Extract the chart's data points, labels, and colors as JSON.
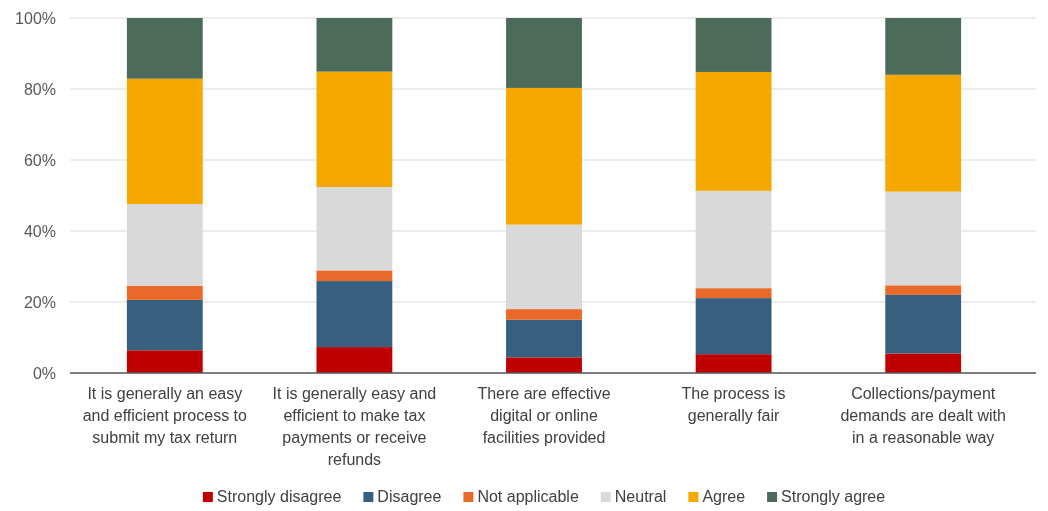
{
  "chart_data": {
    "type": "bar",
    "stacked": true,
    "categories": [
      "It is generally an easy and efficient process to submit my tax return",
      "It is generally easy and efficient to make tax payments or receive refunds",
      "There are effective digital or online facilities provided",
      "The process is generally fair",
      "Collections/payment demands are dealt with in a reasonable way"
    ],
    "series": [
      {
        "name": "Strongly disagree",
        "color": "#c00000",
        "values": [
          6.4,
          7.3,
          4.4,
          5.3,
          5.5
        ]
      },
      {
        "name": "Disagree",
        "color": "#376080",
        "values": [
          14.2,
          18.6,
          10.6,
          15.8,
          16.5
        ]
      },
      {
        "name": "Not applicable",
        "color": "#e8692a",
        "values": [
          4.0,
          3.0,
          3.0,
          2.8,
          2.7
        ]
      },
      {
        "name": "Neutral",
        "color": "#d9d9d9",
        "values": [
          23.0,
          23.5,
          23.8,
          27.4,
          26.4
        ]
      },
      {
        "name": "Agree",
        "color": "#f5a800",
        "values": [
          35.3,
          32.5,
          38.5,
          33.5,
          32.9
        ]
      },
      {
        "name": "Strongly agree",
        "color": "#4d6b5a",
        "values": [
          17.1,
          15.1,
          19.7,
          15.2,
          16.0
        ]
      }
    ],
    "ylim": [
      0,
      100
    ],
    "yticks": [
      {
        "value": 0,
        "label": "0%"
      },
      {
        "value": 20,
        "label": "20%"
      },
      {
        "value": 40,
        "label": "40%"
      },
      {
        "value": 60,
        "label": "60%"
      },
      {
        "value": 80,
        "label": "80%"
      },
      {
        "value": 100,
        "label": "100%"
      }
    ],
    "grid": "y",
    "legend": "bottom"
  }
}
